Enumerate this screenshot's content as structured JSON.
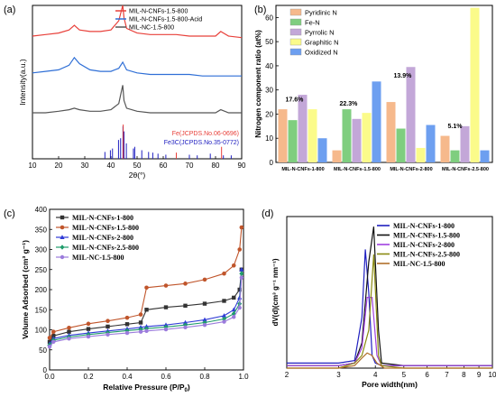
{
  "chart_data": [
    {
      "panel": "(a)",
      "type": "line",
      "xlabel": "2θ(°)",
      "ylabel": "Intensity(a.u.)",
      "xlim": [
        10,
        90
      ],
      "xticks": [
        10,
        20,
        30,
        40,
        50,
        60,
        70,
        80,
        90
      ],
      "legend": "top-right",
      "series": [
        {
          "name": "MIL-N-CNFs-1.5-800",
          "color": "#e8403a",
          "x": [
            10,
            15,
            20,
            24,
            26,
            28,
            32,
            36,
            40,
            43,
            44.5,
            45,
            46,
            50,
            55,
            60,
            65,
            70,
            75,
            80,
            82,
            85,
            90
          ],
          "y": [
            0.8,
            0.81,
            0.82,
            0.84,
            0.87,
            0.84,
            0.83,
            0.83,
            0.84,
            0.9,
            1.0,
            0.92,
            0.85,
            0.82,
            0.81,
            0.81,
            0.81,
            0.8,
            0.8,
            0.8,
            0.83,
            0.8,
            0.79
          ]
        },
        {
          "name": "MIL-N-CNFs-1.5-800-Acid",
          "color": "#2f6fd6",
          "x": [
            10,
            15,
            20,
            24,
            26,
            28,
            32,
            36,
            40,
            43,
            44.5,
            46,
            50,
            55,
            60,
            65,
            70,
            75,
            80,
            85,
            90
          ],
          "y": [
            0.56,
            0.57,
            0.58,
            0.61,
            0.66,
            0.62,
            0.58,
            0.57,
            0.57,
            0.59,
            0.63,
            0.58,
            0.56,
            0.55,
            0.55,
            0.55,
            0.55,
            0.54,
            0.54,
            0.54,
            0.54
          ]
        },
        {
          "name": "MIL-NC-1.5-800",
          "color": "#555555",
          "x": [
            10,
            15,
            20,
            24,
            26,
            28,
            32,
            36,
            40,
            43,
            44.5,
            45,
            46,
            50,
            55,
            60,
            65,
            70,
            75,
            80,
            82,
            85,
            90
          ],
          "y": [
            0.3,
            0.3,
            0.31,
            0.32,
            0.33,
            0.32,
            0.31,
            0.31,
            0.32,
            0.36,
            0.48,
            0.38,
            0.33,
            0.31,
            0.3,
            0.3,
            0.3,
            0.3,
            0.3,
            0.3,
            0.32,
            0.3,
            0.3
          ]
        }
      ],
      "reference_labels": [
        "Fe(JCPDS.No.06-0696)",
        "Fe3C(JCPDS.No.35-0772)"
      ],
      "reference_colors": [
        "#e8403a",
        "#2020c0"
      ],
      "reference_lines": [
        {
          "ref": 1,
          "x": [
            37.7,
            39.8,
            40.6,
            42.9,
            43.7,
            44.6,
            45.0,
            45.9,
            48.6,
            49.1,
            51.8,
            54.4,
            56.0,
            58.0,
            61.0,
            70.0,
            73.0,
            78.0,
            83.0,
            86.0
          ],
          "h": [
            0.2,
            0.25,
            0.3,
            0.55,
            0.6,
            0.95,
            0.8,
            0.45,
            0.3,
            0.35,
            0.25,
            0.2,
            0.18,
            0.15,
            0.12,
            0.12,
            0.1,
            0.15,
            0.1,
            0.1
          ]
        },
        {
          "ref": 0,
          "x": [
            44.7,
            65.0,
            82.3
          ],
          "h": [
            1.0,
            0.18,
            0.35
          ]
        }
      ]
    },
    {
      "panel": "(b)",
      "type": "bar",
      "ylabel": "Nitrogen component ratio (at%)",
      "ylim": [
        0,
        65
      ],
      "yticks": [
        0,
        10,
        20,
        30,
        40,
        50,
        60
      ],
      "categories": [
        "MIL-N-CNFs-1-800",
        "MIL-N-CNFs-1.5-800",
        "MIL-N-CNFs-2-800",
        "MIL-N-CNFs-2.5-800"
      ],
      "series": [
        {
          "name": "Pyridinic N",
          "color": "#f6b98c",
          "values": [
            22,
            5,
            25,
            11
          ]
        },
        {
          "name": "Fe-N",
          "color": "#7fce7f",
          "values": [
            17.5,
            22,
            14,
            5
          ]
        },
        {
          "name": "Pyrrolic N",
          "color": "#c3a7d8",
          "values": [
            28,
            18,
            39.5,
            15
          ]
        },
        {
          "name": "Graphitic N",
          "color": "#fbfb8a",
          "values": [
            22,
            20.5,
            6,
            64
          ]
        },
        {
          "name": "Oxidized N",
          "color": "#6d9ff0",
          "values": [
            10,
            33.5,
            15.5,
            5
          ]
        }
      ],
      "annotations": [
        "17.6%",
        "22.3%",
        "13.9%",
        "5.1%"
      ],
      "legend": "top-left"
    },
    {
      "panel": "(c)",
      "type": "line",
      "xlabel": "Relative Pressure (P/P",
      "xlabel_sub": "0",
      "xlabel_end": ")",
      "ylabel": "Volume Adsorbed (cm³ g⁻¹)",
      "xlim": [
        0,
        1
      ],
      "ylim": [
        0,
        400
      ],
      "xticks": [
        0.0,
        0.2,
        0.4,
        0.6,
        0.8,
        1.0
      ],
      "yticks": [
        0,
        50,
        100,
        150,
        200,
        250,
        300,
        350,
        400
      ],
      "legend": "top-left",
      "series": [
        {
          "name": "MIL-N-CNFs-1-800",
          "color": "#333333",
          "marker": "square",
          "x": [
            0,
            0.02,
            0.1,
            0.2,
            0.3,
            0.4,
            0.47,
            0.5,
            0.6,
            0.7,
            0.8,
            0.9,
            0.95,
            0.98,
            0.99
          ],
          "y": [
            70,
            85,
            95,
            102,
            108,
            114,
            118,
            150,
            156,
            160,
            165,
            172,
            180,
            200,
            250
          ]
        },
        {
          "name": "MIL-N-CNFs-1.5-800",
          "color": "#c0552b",
          "marker": "circle",
          "x": [
            0,
            0.02,
            0.1,
            0.2,
            0.3,
            0.4,
            0.47,
            0.5,
            0.6,
            0.7,
            0.8,
            0.9,
            0.95,
            0.98,
            0.99
          ],
          "y": [
            80,
            95,
            105,
            115,
            122,
            130,
            138,
            205,
            210,
            215,
            225,
            240,
            260,
            300,
            355
          ]
        },
        {
          "name": "MIL-N-CNFs-2-800",
          "color": "#2f3ad6",
          "marker": "triangle",
          "x": [
            0,
            0.02,
            0.1,
            0.2,
            0.3,
            0.4,
            0.47,
            0.5,
            0.6,
            0.7,
            0.8,
            0.9,
            0.95,
            0.98,
            0.99
          ],
          "y": [
            65,
            78,
            86,
            92,
            97,
            102,
            106,
            108,
            112,
            118,
            125,
            135,
            150,
            180,
            250
          ]
        },
        {
          "name": "MIL-N-CNFs-2.5-800",
          "color": "#1f9c6b",
          "marker": "diamond",
          "x": [
            0,
            0.02,
            0.1,
            0.2,
            0.3,
            0.4,
            0.47,
            0.5,
            0.6,
            0.7,
            0.8,
            0.9,
            0.95,
            0.98,
            0.99
          ],
          "y": [
            62,
            74,
            82,
            88,
            93,
            98,
            101,
            103,
            107,
            112,
            118,
            127,
            140,
            165,
            240
          ]
        },
        {
          "name": "MIL-NC-1.5-800",
          "color": "#9b7bdc",
          "marker": "star",
          "x": [
            0,
            0.02,
            0.1,
            0.2,
            0.3,
            0.4,
            0.47,
            0.5,
            0.6,
            0.7,
            0.8,
            0.9,
            0.95,
            0.98,
            0.99
          ],
          "y": [
            58,
            70,
            78,
            83,
            88,
            92,
            95,
            97,
            101,
            106,
            112,
            120,
            132,
            155,
            230
          ]
        }
      ]
    },
    {
      "panel": "(d)",
      "type": "line",
      "xlabel": "Pore width(nm)",
      "ylabel": "dV(d)(cm³ g⁻¹ nm⁻¹)",
      "xlim": [
        2,
        10
      ],
      "ylim": [
        0,
        0.6
      ],
      "xticks": [
        2,
        3,
        4,
        5,
        6,
        7,
        8,
        9,
        10
      ],
      "xscale": "log",
      "legend": "top-right",
      "series": [
        {
          "name": "MIL-N-CNFs-1-800",
          "color": "#2020c0",
          "x": [
            2,
            3,
            3.4,
            3.6,
            3.7,
            3.8,
            3.9,
            4.0,
            4.2,
            5,
            6,
            8,
            10
          ],
          "y": [
            0.02,
            0.02,
            0.03,
            0.2,
            0.47,
            0.3,
            0.05,
            0.02,
            0.01,
            0.01,
            0.01,
            0.01,
            0.01
          ]
        },
        {
          "name": "MIL-N-CNFs-1.5-800",
          "color": "#111111",
          "x": [
            2,
            3,
            3.4,
            3.6,
            3.8,
            3.95,
            4.1,
            4.2,
            5,
            6,
            8,
            10
          ],
          "y": [
            0.01,
            0.01,
            0.02,
            0.1,
            0.42,
            0.56,
            0.15,
            0.02,
            0.01,
            0.01,
            0.01,
            0.01
          ]
        },
        {
          "name": "MIL-N-CNFs-2-800",
          "color": "#a040e0",
          "x": [
            2,
            3,
            3.4,
            3.6,
            3.75,
            3.9,
            4.05,
            4.2,
            5,
            6,
            8,
            10
          ],
          "y": [
            0.01,
            0.01,
            0.02,
            0.08,
            0.28,
            0.28,
            0.05,
            0.01,
            0.01,
            0.01,
            0.01,
            0.01
          ]
        },
        {
          "name": "MIL-N-CNFs-2.5-800",
          "color": "#8a8a10",
          "x": [
            2,
            3,
            3.4,
            3.6,
            3.8,
            3.95,
            4.1,
            4.2,
            5,
            6,
            8,
            10
          ],
          "y": [
            0.0,
            0.0,
            0.02,
            0.05,
            0.15,
            0.45,
            0.05,
            0.01,
            0.0,
            0.0,
            0.0,
            0.0
          ]
        },
        {
          "name": "MIL-NC-1.5-800",
          "color": "#b0702a",
          "x": [
            2,
            3,
            3.4,
            3.6,
            3.75,
            3.9,
            4.05,
            4.3,
            5,
            6,
            8,
            10
          ],
          "y": [
            0.0,
            0.0,
            0.01,
            0.04,
            0.06,
            0.05,
            0.02,
            0.0,
            0.0,
            0.0,
            0.0,
            0.0
          ]
        }
      ]
    }
  ]
}
